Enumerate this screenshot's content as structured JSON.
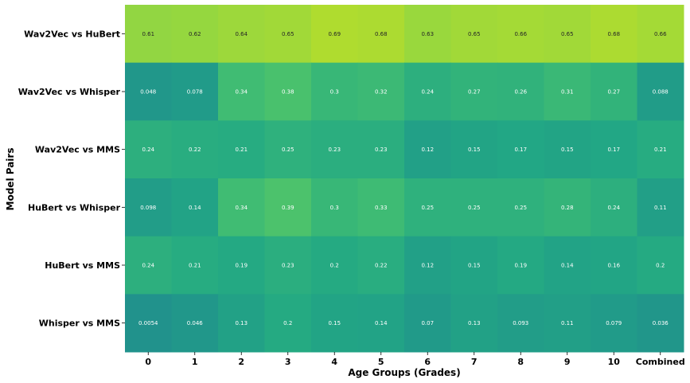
{
  "chart_data": {
    "type": "heatmap",
    "xlabel": "Age Groups (Grades)",
    "ylabel": "Model Pairs",
    "x_categories": [
      "0",
      "1",
      "2",
      "3",
      "4",
      "5",
      "6",
      "7",
      "8",
      "9",
      "10",
      "Combined"
    ],
    "y_categories": [
      "Wav2Vec vs HuBert",
      "Wav2Vec vs Whisper",
      "Wav2Vec vs MMS",
      "HuBert vs Whisper",
      "HuBert vs MMS",
      "Whisper vs MMS"
    ],
    "values": [
      [
        0.61,
        0.62,
        0.64,
        0.65,
        0.69,
        0.68,
        0.63,
        0.65,
        0.66,
        0.65,
        0.68,
        0.66
      ],
      [
        0.048,
        0.078,
        0.34,
        0.38,
        0.3,
        0.32,
        0.24,
        0.27,
        0.26,
        0.31,
        0.27,
        0.088
      ],
      [
        0.24,
        0.22,
        0.21,
        0.25,
        0.23,
        0.23,
        0.12,
        0.15,
        0.17,
        0.15,
        0.17,
        0.21
      ],
      [
        0.098,
        0.14,
        0.34,
        0.39,
        0.3,
        0.33,
        0.25,
        0.25,
        0.25,
        0.28,
        0.24,
        0.11
      ],
      [
        0.24,
        0.21,
        0.19,
        0.23,
        0.2,
        0.22,
        0.12,
        0.15,
        0.19,
        0.14,
        0.16,
        0.2
      ],
      [
        0.0054,
        0.046,
        0.13,
        0.2,
        0.15,
        0.14,
        0.07,
        0.13,
        0.093,
        0.11,
        0.079,
        0.036
      ]
    ],
    "value_labels": [
      [
        "0.61",
        "0.62",
        "0.64",
        "0.65",
        "0.69",
        "0.68",
        "0.63",
        "0.65",
        "0.66",
        "0.65",
        "0.68",
        "0.66"
      ],
      [
        "0.048",
        "0.078",
        "0.34",
        "0.38",
        "0.3",
        "0.32",
        "0.24",
        "0.27",
        "0.26",
        "0.31",
        "0.27",
        "0.088"
      ],
      [
        "0.24",
        "0.22",
        "0.21",
        "0.25",
        "0.23",
        "0.23",
        "0.12",
        "0.15",
        "0.17",
        "0.15",
        "0.17",
        "0.21"
      ],
      [
        "0.098",
        "0.14",
        "0.34",
        "0.39",
        "0.3",
        "0.33",
        "0.25",
        "0.25",
        "0.25",
        "0.28",
        "0.24",
        "0.11"
      ],
      [
        "0.24",
        "0.21",
        "0.19",
        "0.23",
        "0.2",
        "0.22",
        "0.12",
        "0.15",
        "0.19",
        "0.14",
        "0.16",
        "0.2"
      ],
      [
        "0.0054",
        "0.046",
        "0.13",
        "0.2",
        "0.15",
        "0.14",
        "0.07",
        "0.13",
        "0.093",
        "0.11",
        "0.079",
        "0.036"
      ]
    ],
    "colormap": "viridis",
    "value_range": [
      0,
      1
    ],
    "colorbar": false,
    "annotated": true,
    "grid": false
  }
}
